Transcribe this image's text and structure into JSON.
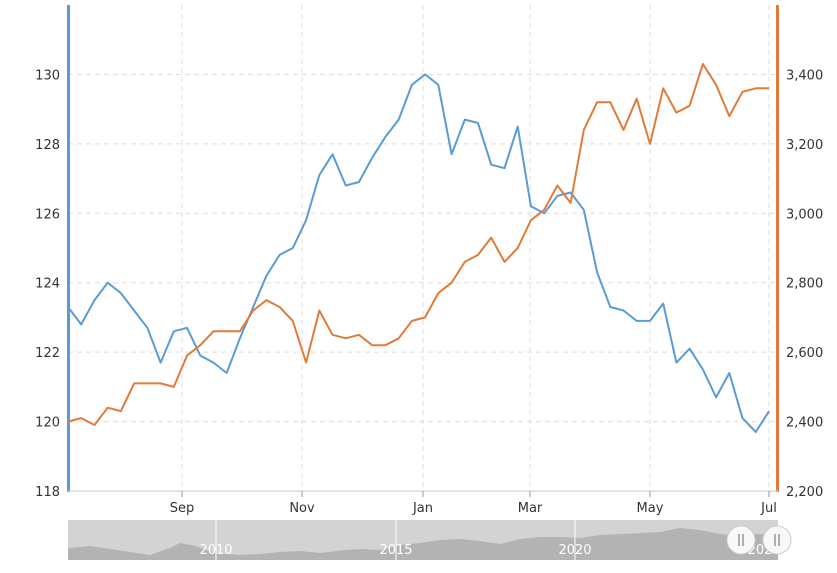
{
  "chart_data": {
    "type": "line",
    "x_tick_labels": [
      "Sep",
      "Nov",
      "Jan",
      "Mar",
      "May",
      "Jul"
    ],
    "y_left": {
      "ticks": [
        "118",
        "120",
        "122",
        "124",
        "126",
        "128",
        "130"
      ],
      "range": [
        118,
        132
      ]
    },
    "y_right": {
      "ticks": [
        "2,200",
        "2,400",
        "2,600",
        "2,800",
        "3,000",
        "3,200",
        "3,400"
      ],
      "range": [
        2200,
        3600
      ]
    },
    "grid": true,
    "series": [
      {
        "axis": "left",
        "color": "#5b9bd5",
        "values": [
          123.3,
          122.8,
          123.5,
          124.0,
          123.7,
          123.2,
          122.7,
          121.7,
          122.6,
          122.7,
          121.9,
          121.7,
          121.4,
          122.4,
          123.3,
          124.2,
          124.8,
          125.0,
          125.8,
          127.1,
          127.7,
          126.8,
          126.9,
          127.6,
          128.2,
          128.7,
          129.7,
          130.0,
          129.7,
          127.7,
          128.7,
          128.6,
          127.4,
          127.3,
          128.5,
          126.2,
          126.0,
          126.5,
          126.6,
          126.1,
          124.3,
          123.3,
          123.2,
          122.9,
          122.9,
          123.4,
          121.7,
          122.1,
          121.5,
          120.7,
          121.4,
          120.1,
          119.7,
          120.3
        ]
      },
      {
        "axis": "right",
        "color": "#e07b39",
        "values": [
          2400,
          2410,
          2390,
          2440,
          2430,
          2510,
          2510,
          2510,
          2500,
          2590,
          2620,
          2660,
          2660,
          2660,
          2720,
          2750,
          2730,
          2690,
          2570,
          2720,
          2650,
          2640,
          2650,
          2620,
          2620,
          2640,
          2690,
          2700,
          2770,
          2800,
          2860,
          2880,
          2930,
          2860,
          2900,
          2980,
          3010,
          3080,
          3030,
          3240,
          3320,
          3320,
          3240,
          3330,
          3200,
          3360,
          3290,
          3310,
          3430,
          3370,
          3280,
          3350,
          3360,
          3360
        ]
      }
    ]
  },
  "navigator": {
    "labels": [
      "2010",
      "2015",
      "2020",
      "202"
    ]
  }
}
